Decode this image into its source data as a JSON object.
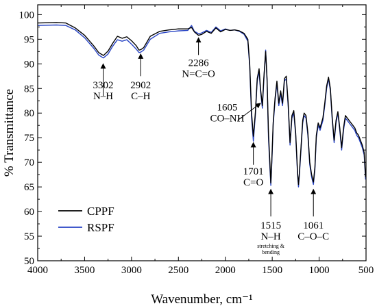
{
  "chart_data": {
    "type": "line",
    "title": "",
    "xlabel": "Wavenumber, cm⁻¹",
    "ylabel": "% Transmittance",
    "xlim": [
      4000,
      500
    ],
    "ylim": [
      50,
      102
    ],
    "x_reversed": true,
    "x_ticks": [
      4000,
      3500,
      3000,
      2500,
      2000,
      1500,
      1000,
      500
    ],
    "y_ticks": [
      50,
      55,
      60,
      65,
      70,
      75,
      80,
      85,
      90,
      95,
      100
    ],
    "grid": false,
    "legend_position": "bottom-left",
    "series": [
      {
        "name": "CPPF",
        "color": "#000000",
        "points": [
          [
            4000,
            98.3
          ],
          [
            3800,
            98.4
          ],
          [
            3700,
            98.3
          ],
          [
            3600,
            97.3
          ],
          [
            3500,
            95.8
          ],
          [
            3400,
            93.6
          ],
          [
            3350,
            92.3
          ],
          [
            3300,
            91.7
          ],
          [
            3250,
            92.6
          ],
          [
            3200,
            94.2
          ],
          [
            3150,
            95.6
          ],
          [
            3100,
            95.2
          ],
          [
            3050,
            95.5
          ],
          [
            3000,
            94.7
          ],
          [
            2950,
            93.7
          ],
          [
            2920,
            92.8
          ],
          [
            2900,
            92.9
          ],
          [
            2870,
            93.3
          ],
          [
            2800,
            95.6
          ],
          [
            2700,
            96.6
          ],
          [
            2600,
            96.9
          ],
          [
            2500,
            97.1
          ],
          [
            2400,
            97.1
          ],
          [
            2360,
            97.4
          ],
          [
            2330,
            96.5
          ],
          [
            2300,
            96.0
          ],
          [
            2286,
            95.8
          ],
          [
            2250,
            96.0
          ],
          [
            2200,
            96.6
          ],
          [
            2150,
            96.2
          ],
          [
            2100,
            97.3
          ],
          [
            2050,
            96.5
          ],
          [
            2000,
            97.0
          ],
          [
            1950,
            96.8
          ],
          [
            1900,
            96.9
          ],
          [
            1850,
            96.7
          ],
          [
            1800,
            96.2
          ],
          [
            1760,
            95.0
          ],
          [
            1740,
            90.0
          ],
          [
            1720,
            80.0
          ],
          [
            1701,
            75.3
          ],
          [
            1680,
            80.0
          ],
          [
            1660,
            87.0
          ],
          [
            1640,
            89.0
          ],
          [
            1625,
            85.0
          ],
          [
            1605,
            81.5
          ],
          [
            1590,
            87.0
          ],
          [
            1570,
            92.5
          ],
          [
            1555,
            87.0
          ],
          [
            1540,
            76.0
          ],
          [
            1525,
            70.0
          ],
          [
            1515,
            65.8
          ],
          [
            1505,
            70.0
          ],
          [
            1490,
            78.0
          ],
          [
            1470,
            83.0
          ],
          [
            1450,
            86.5
          ],
          [
            1430,
            82.0
          ],
          [
            1410,
            84.5
          ],
          [
            1390,
            82.0
          ],
          [
            1370,
            87.0
          ],
          [
            1350,
            87.5
          ],
          [
            1330,
            82.0
          ],
          [
            1310,
            74.0
          ],
          [
            1290,
            79.5
          ],
          [
            1270,
            80.5
          ],
          [
            1250,
            76.0
          ],
          [
            1230,
            68.0
          ],
          [
            1220,
            65.5
          ],
          [
            1210,
            68.0
          ],
          [
            1190,
            74.0
          ],
          [
            1175,
            78.5
          ],
          [
            1160,
            80.0
          ],
          [
            1140,
            79.5
          ],
          [
            1120,
            76.0
          ],
          [
            1100,
            70.0
          ],
          [
            1080,
            67.5
          ],
          [
            1061,
            66.0
          ],
          [
            1045,
            69.0
          ],
          [
            1030,
            75.5
          ],
          [
            1010,
            78.0
          ],
          [
            990,
            77.0
          ],
          [
            960,
            79.0
          ],
          [
            940,
            82.0
          ],
          [
            920,
            85.5
          ],
          [
            900,
            87.3
          ],
          [
            880,
            85.0
          ],
          [
            860,
            79.0
          ],
          [
            840,
            74.5
          ],
          [
            820,
            78.5
          ],
          [
            800,
            80.3
          ],
          [
            780,
            77.0
          ],
          [
            760,
            73.0
          ],
          [
            740,
            77.0
          ],
          [
            720,
            79.5
          ],
          [
            700,
            79.0
          ],
          [
            680,
            78.5
          ],
          [
            660,
            78.0
          ],
          [
            640,
            77.5
          ],
          [
            620,
            77.0
          ],
          [
            600,
            76.0
          ],
          [
            580,
            75.5
          ],
          [
            560,
            74.5
          ],
          [
            540,
            73.5
          ],
          [
            520,
            72.0
          ],
          [
            505,
            67.0
          ]
        ]
      },
      {
        "name": "RSPF",
        "color": "#2743c4",
        "points": [
          [
            4000,
            97.8
          ],
          [
            3800,
            97.9
          ],
          [
            3700,
            97.8
          ],
          [
            3600,
            96.9
          ],
          [
            3500,
            95.3
          ],
          [
            3400,
            93.1
          ],
          [
            3350,
            91.8
          ],
          [
            3300,
            91.2
          ],
          [
            3250,
            92.0
          ],
          [
            3200,
            93.6
          ],
          [
            3150,
            94.9
          ],
          [
            3100,
            94.6
          ],
          [
            3050,
            94.9
          ],
          [
            3000,
            94.0
          ],
          [
            2950,
            93.0
          ],
          [
            2920,
            92.3
          ],
          [
            2900,
            92.4
          ],
          [
            2870,
            92.8
          ],
          [
            2800,
            95.0
          ],
          [
            2700,
            96.2
          ],
          [
            2600,
            96.5
          ],
          [
            2500,
            96.7
          ],
          [
            2400,
            96.8
          ],
          [
            2360,
            97.8
          ],
          [
            2330,
            96.6
          ],
          [
            2300,
            96.3
          ],
          [
            2286,
            96.1
          ],
          [
            2250,
            96.3
          ],
          [
            2200,
            96.8
          ],
          [
            2150,
            96.4
          ],
          [
            2100,
            97.5
          ],
          [
            2050,
            96.7
          ],
          [
            2000,
            97.1
          ],
          [
            1950,
            96.8
          ],
          [
            1900,
            96.9
          ],
          [
            1850,
            96.6
          ],
          [
            1800,
            96.0
          ],
          [
            1760,
            94.6
          ],
          [
            1740,
            89.5
          ],
          [
            1720,
            79.0
          ],
          [
            1701,
            74.3
          ],
          [
            1680,
            79.5
          ],
          [
            1660,
            86.5
          ],
          [
            1640,
            88.5
          ],
          [
            1625,
            84.5
          ],
          [
            1605,
            81.0
          ],
          [
            1590,
            86.5
          ],
          [
            1570,
            92.8
          ],
          [
            1555,
            86.5
          ],
          [
            1540,
            75.0
          ],
          [
            1525,
            69.0
          ],
          [
            1515,
            65.3
          ],
          [
            1505,
            69.5
          ],
          [
            1490,
            77.5
          ],
          [
            1470,
            82.5
          ],
          [
            1450,
            86.0
          ],
          [
            1430,
            81.5
          ],
          [
            1410,
            84.0
          ],
          [
            1390,
            81.5
          ],
          [
            1370,
            86.5
          ],
          [
            1350,
            87.0
          ],
          [
            1330,
            81.5
          ],
          [
            1310,
            73.5
          ],
          [
            1290,
            79.0
          ],
          [
            1270,
            80.0
          ],
          [
            1250,
            75.5
          ],
          [
            1230,
            67.5
          ],
          [
            1220,
            65.0
          ],
          [
            1210,
            67.5
          ],
          [
            1190,
            73.5
          ],
          [
            1175,
            78.0
          ],
          [
            1160,
            79.5
          ],
          [
            1140,
            79.0
          ],
          [
            1120,
            75.5
          ],
          [
            1100,
            69.5
          ],
          [
            1080,
            67.0
          ],
          [
            1061,
            65.5
          ],
          [
            1045,
            68.5
          ],
          [
            1030,
            75.0
          ],
          [
            1010,
            77.5
          ],
          [
            990,
            76.5
          ],
          [
            960,
            78.5
          ],
          [
            940,
            81.5
          ],
          [
            920,
            85.0
          ],
          [
            900,
            87.0
          ],
          [
            880,
            84.5
          ],
          [
            860,
            78.5
          ],
          [
            840,
            74.0
          ],
          [
            820,
            78.0
          ],
          [
            800,
            80.0
          ],
          [
            780,
            76.5
          ],
          [
            760,
            72.5
          ],
          [
            740,
            76.5
          ],
          [
            720,
            79.0
          ],
          [
            700,
            78.5
          ],
          [
            680,
            78.0
          ],
          [
            660,
            77.5
          ],
          [
            640,
            77.0
          ],
          [
            620,
            76.5
          ],
          [
            600,
            75.5
          ],
          [
            580,
            75.0
          ],
          [
            560,
            74.0
          ],
          [
            540,
            73.0
          ],
          [
            520,
            71.5
          ],
          [
            505,
            66.5
          ]
        ]
      }
    ],
    "annotations": [
      {
        "lines": [
          "3302",
          "N–H"
        ],
        "sub": [],
        "x": 3302,
        "arrow_from_y": 83.5,
        "arrow_to_y": 90.0,
        "text_y": 87.0,
        "direction": "up"
      },
      {
        "lines": [
          "2902",
          "C–H"
        ],
        "sub": [],
        "x": 2902,
        "arrow_from_y": 87.5,
        "arrow_to_y": 92.0,
        "text_y": 87.0,
        "direction": "up"
      },
      {
        "lines": [
          "2286",
          "N=C=O"
        ],
        "sub": [],
        "x": 2286,
        "arrow_from_y": 91.8,
        "arrow_to_y": 95.3,
        "text_y": 91.5,
        "direction": "up"
      },
      {
        "lines": [
          "1605",
          "CO–NH"
        ],
        "sub": [],
        "x": 1605,
        "text_x": 1980,
        "text_y": 80.5,
        "diagonal": true,
        "arrow_from_x": 1870,
        "arrow_from_y": 78.5,
        "arrow_to_x": 1625,
        "arrow_to_y": 82.0
      },
      {
        "lines": [
          "1701",
          "C=O"
        ],
        "sub": [],
        "x": 1701,
        "arrow_from_y": 69.5,
        "arrow_to_y": 74.0,
        "text_y": 69.5,
        "direction": "up"
      },
      {
        "lines": [
          "1515",
          "N–H"
        ],
        "sub": [
          "stretching &",
          "bending"
        ],
        "x": 1515,
        "arrow_from_y": 59.0,
        "arrow_to_y": 64.5,
        "text_y": 58.5,
        "direction": "up"
      },
      {
        "lines": [
          "1061",
          "C–O–C"
        ],
        "sub": [],
        "x": 1061,
        "arrow_from_y": 59.0,
        "arrow_to_y": 64.5,
        "text_y": 58.5,
        "direction": "up"
      }
    ]
  }
}
